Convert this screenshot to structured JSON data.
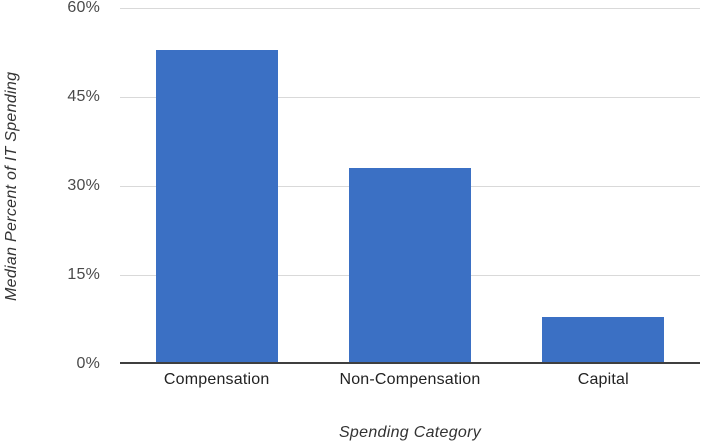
{
  "chart_data": {
    "type": "bar",
    "title": "",
    "categories": [
      "Compensation",
      "Non-Compensation",
      "Capital"
    ],
    "values": [
      53,
      33,
      8
    ],
    "xlabel": "Spending Category",
    "ylabel": "Median Percent of IT Spending",
    "ylim": [
      0,
      60
    ],
    "yticks": [
      0,
      15,
      30,
      45,
      60
    ],
    "ytick_labels": [
      "0%",
      "15%",
      "30%",
      "45%",
      "60%"
    ],
    "grid": "horizontal",
    "legend_position": "none",
    "bar_color": "#3b70c4",
    "gridline_color": "#d9d9d9",
    "baseline_color": "#3f3f3f"
  }
}
